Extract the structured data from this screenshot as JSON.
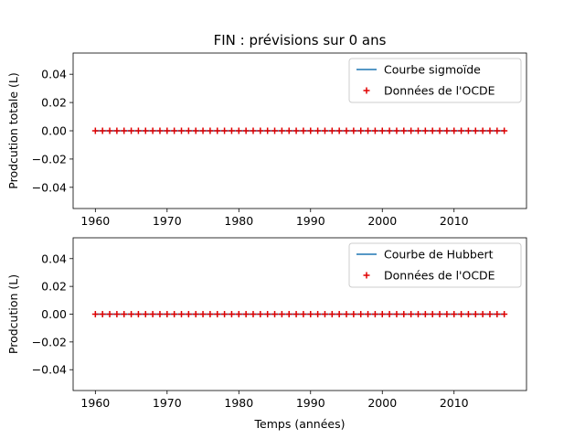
{
  "figure": {
    "title": "FIN : prévisions sur 0 ans",
    "xlabel": "Temps (années)"
  },
  "colors": {
    "line": "#1f77b4",
    "marker": "#e00000",
    "frame": "#000000",
    "legend_border": "#cccccc"
  },
  "chart_data": [
    {
      "type": "line",
      "ylabel": "Prodcution totale (L)",
      "xlim": [
        1956.9,
        2020.1
      ],
      "ylim": [
        -0.055,
        0.055
      ],
      "xticks": [
        1960,
        1970,
        1980,
        1990,
        2000,
        2010
      ],
      "xtick_labels": [
        "1960",
        "1970",
        "1980",
        "1990",
        "2000",
        "2010"
      ],
      "yticks": [
        0.04,
        0.02,
        0.0,
        -0.02,
        -0.04
      ],
      "ytick_labels": [
        "0.04",
        "0.02",
        "0.00",
        "−0.02",
        "−0.04"
      ],
      "legend": {
        "position": "top-right",
        "entries": [
          "Courbe sigmoïde",
          "Données de l'OCDE"
        ]
      },
      "series": [
        {
          "name": "Courbe sigmoïde",
          "kind": "line",
          "x_start": 1960,
          "x_end": 2017,
          "value": 0
        },
        {
          "name": "Données de l'OCDE",
          "kind": "scatter",
          "marker": "+",
          "x_start": 1960,
          "x_end": 2017,
          "value": 0
        }
      ]
    },
    {
      "type": "line",
      "ylabel": "Prodcution (L)",
      "xlim": [
        1956.9,
        2020.1
      ],
      "ylim": [
        -0.055,
        0.055
      ],
      "xticks": [
        1960,
        1970,
        1980,
        1990,
        2000,
        2010
      ],
      "xtick_labels": [
        "1960",
        "1970",
        "1980",
        "1990",
        "2000",
        "2010"
      ],
      "yticks": [
        0.04,
        0.02,
        0.0,
        -0.02,
        -0.04
      ],
      "ytick_labels": [
        "0.04",
        "0.02",
        "0.00",
        "−0.02",
        "−0.04"
      ],
      "legend": {
        "position": "top-right",
        "entries": [
          "Courbe de Hubbert",
          "Données de l'OCDE"
        ]
      },
      "series": [
        {
          "name": "Courbe de Hubbert",
          "kind": "line",
          "x_start": 1960,
          "x_end": 2017,
          "value": 0
        },
        {
          "name": "Données de l'OCDE",
          "kind": "scatter",
          "marker": "+",
          "x_start": 1960,
          "x_end": 2017,
          "value": 0
        }
      ]
    }
  ]
}
